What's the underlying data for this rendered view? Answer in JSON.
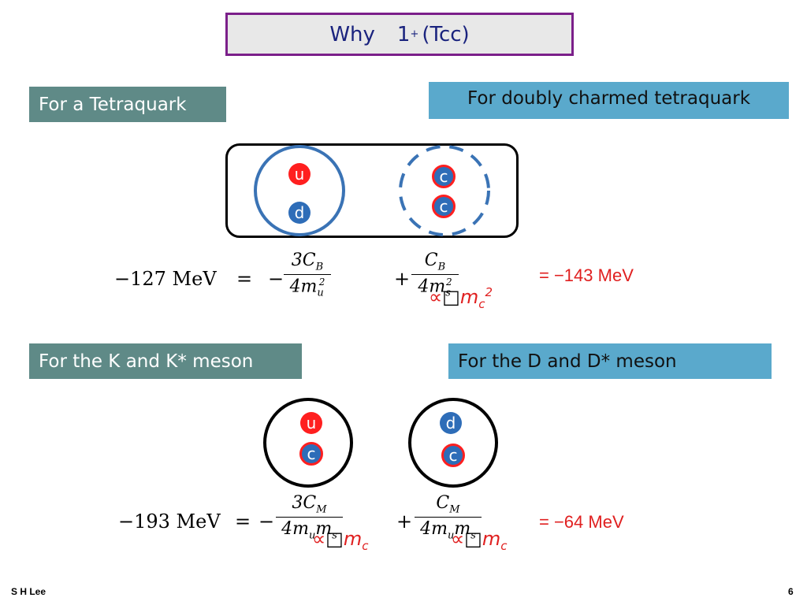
{
  "title": {
    "text": "Why",
    "spin": "1",
    "parity": "+",
    "state": "(Tcc)"
  },
  "labels": {
    "tetraquark": "For a Tetraquark",
    "doubly_charmed": "For doubly charmed tetraquark",
    "k_meson": "For the K and K* meson",
    "d_meson": "For the D and  D* meson"
  },
  "quarks": {
    "u": "u",
    "d": "d",
    "c": "c"
  },
  "eq1": {
    "lhs": "−127 MeV",
    "equals": "=",
    "minus": "−",
    "plus": "+",
    "frac1": {
      "num": "3C",
      "num_sub": "B",
      "den": "4m",
      "den_sub": "u",
      "den_sup": "2"
    },
    "frac2": {
      "num": "C",
      "num_sub": "B",
      "den": "4m",
      "den_sub": "s",
      "den_sup": "2"
    },
    "result": "= −143 MeV",
    "prop": {
      "sym": "∝",
      "box": "□",
      "var": "m",
      "sub": "c",
      "sup": "2"
    }
  },
  "eq2": {
    "lhs": "−193 MeV",
    "equals": "=",
    "minus": "−",
    "plus": "+",
    "frac1": {
      "num": "3C",
      "num_sub": "M",
      "den": "4m",
      "den_sub": "u",
      "den2": "m",
      "den2_sub": "s"
    },
    "frac2": {
      "num": "C",
      "num_sub": "M",
      "den": "4m",
      "den_sub": "u",
      "den2": "m",
      "den2_sub": "s"
    },
    "result": "= −64 MeV",
    "prop": {
      "sym": "∝",
      "box": "□",
      "var": "m",
      "sub": "c"
    }
  },
  "footer": {
    "author": "S H Lee",
    "page": "6"
  },
  "colors": {
    "title_border": "#7b1f8a",
    "label_gray": "#5f8a87",
    "label_blue": "#5aa9cc",
    "red": "#ff1f1f",
    "blue": "#2e6db8",
    "ring_blue": "#3a73b5"
  }
}
